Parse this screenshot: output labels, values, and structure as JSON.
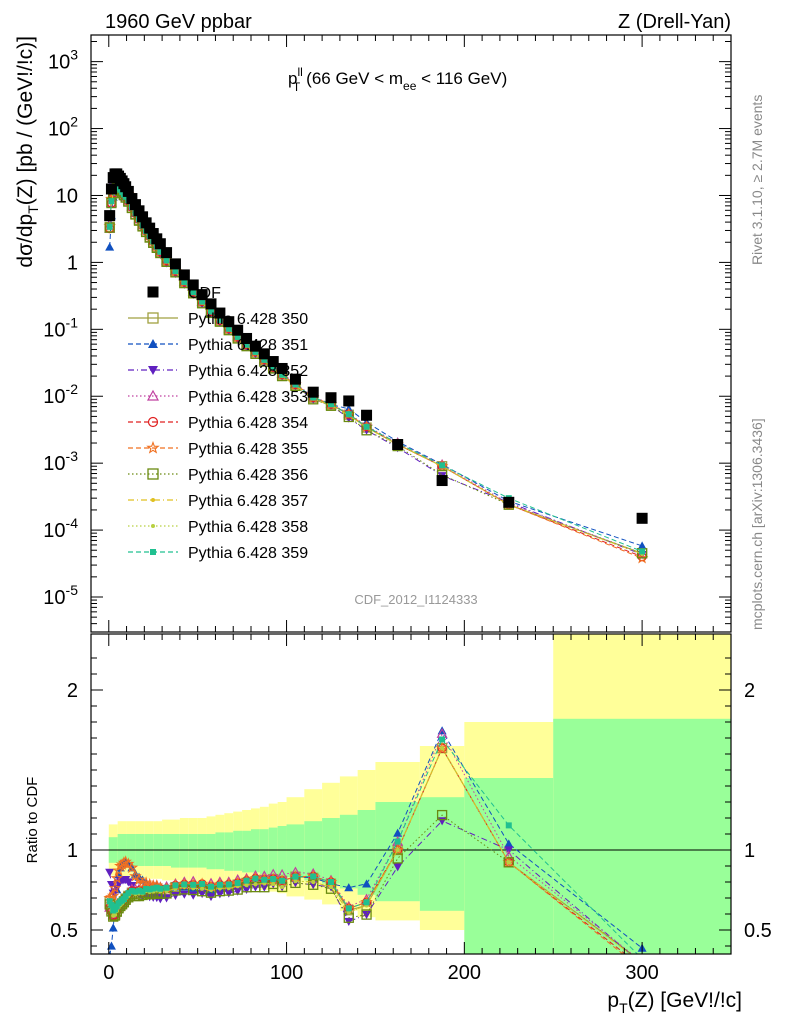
{
  "header": {
    "left": "1960 GeV ppbar",
    "right": "Z (Drell-Yan)"
  },
  "side_labels": {
    "rivet": "Rivet 3.1.10, ≥ 2.7M events",
    "mcplots": "mcplots.cern.ch [arXiv:1306.3436]"
  },
  "chart_data": [
    {
      "type": "scatter",
      "panel": "main",
      "title": "p_T^ll (66 GeV < m_ee < 116 GeV)",
      "annotation": "CDF_2012_I1124333",
      "xlabel": "p_T(Z) [GeV!/!c]",
      "ylabel": "dσ/dp_T(Z) [pb / (GeV!/!c)]",
      "xlim": [
        -10,
        350
      ],
      "ylim": [
        3e-06,
        2500
      ],
      "yscale": "log",
      "yticks": [
        "10^-5",
        "10^-4",
        "10^-3",
        "10^-2",
        "10^-1",
        "1",
        "10",
        "10^2",
        "10^3"
      ],
      "legend_position": "center-left",
      "x": [
        0.5,
        1.5,
        2.5,
        3.5,
        4.5,
        5.5,
        6.5,
        7.5,
        8.5,
        9.5,
        11,
        13,
        15,
        17,
        19,
        21,
        23,
        25,
        27,
        29,
        32.5,
        37.5,
        42.5,
        47.5,
        52.5,
        57.5,
        62.5,
        67.5,
        72.5,
        77.5,
        82.5,
        87.5,
        92.5,
        97.5,
        105,
        115,
        125,
        135,
        145,
        162.5,
        187.5,
        225,
        300
      ],
      "series": [
        {
          "name": "CDF",
          "color": "#000000",
          "marker": "square-filled",
          "line": "none",
          "values": [
            5.0,
            12.5,
            18.5,
            21.0,
            21.0,
            19.5,
            18.0,
            16.5,
            15.0,
            13.5,
            11.5,
            9.0,
            7.3,
            5.9,
            4.8,
            3.9,
            3.25,
            2.7,
            2.25,
            1.9,
            1.4,
            0.95,
            0.65,
            0.46,
            0.33,
            0.24,
            0.175,
            0.13,
            0.097,
            0.073,
            0.056,
            0.043,
            0.033,
            0.026,
            0.018,
            0.0115,
            0.0095,
            0.0085,
            0.0052,
            0.0019,
            0.00055,
            0.00026,
            0.00015
          ]
        },
        {
          "name": "Pythia 6.428 350",
          "color": "#a0a040",
          "marker": "square-open",
          "line": "solid",
          "values": [
            3.4,
            8.0,
            11.0,
            12.5,
            13.0,
            12.5,
            11.8,
            11.0,
            10.2,
            9.4,
            8.2,
            6.6,
            5.3,
            4.3,
            3.5,
            2.9,
            2.4,
            2.0,
            1.7,
            1.42,
            1.05,
            0.73,
            0.5,
            0.35,
            0.25,
            0.18,
            0.134,
            0.1,
            0.076,
            0.058,
            0.045,
            0.035,
            0.027,
            0.021,
            0.015,
            0.0095,
            0.0075,
            0.0053,
            0.0034,
            0.0019,
            0.0009,
            0.00024,
            4.5e-05
          ]
        },
        {
          "name": "Pythia 6.428 351",
          "color": "#1050c0",
          "marker": "triangle-up-filled",
          "line": "dashed",
          "values": [
            1.7,
            5.0,
            9.5,
            13.5,
            15.8,
            16.5,
            16.0,
            15.0,
            13.8,
            12.5,
            10.5,
            8.0,
            6.2,
            4.9,
            3.9,
            3.1,
            2.55,
            2.1,
            1.75,
            1.45,
            1.06,
            0.73,
            0.5,
            0.35,
            0.25,
            0.18,
            0.134,
            0.1,
            0.076,
            0.058,
            0.045,
            0.035,
            0.027,
            0.021,
            0.015,
            0.0095,
            0.0075,
            0.0065,
            0.0041,
            0.0021,
            0.00096,
            0.00027,
            5.8e-05
          ]
        },
        {
          "name": "Pythia 6.428 352",
          "color": "#6020c0",
          "marker": "triangle-down-filled",
          "line": "dashdot",
          "values": [
            4.3,
            9.8,
            13.5,
            15.5,
            16.0,
            15.5,
            14.5,
            13.4,
            12.2,
            11.0,
            9.2,
            7.0,
            5.4,
            4.3,
            3.4,
            2.8,
            2.3,
            1.9,
            1.58,
            1.32,
            0.98,
            0.68,
            0.47,
            0.33,
            0.24,
            0.17,
            0.127,
            0.095,
            0.072,
            0.055,
            0.043,
            0.033,
            0.026,
            0.02,
            0.0143,
            0.009,
            0.0073,
            0.0047,
            0.0031,
            0.0017,
            0.00065,
            0.00026,
            4.3e-05
          ]
        },
        {
          "name": "Pythia 6.428 353",
          "color": "#c040a0",
          "marker": "triangle-up-open",
          "line": "dotted",
          "values": [
            3.2,
            7.8,
            11.0,
            12.6,
            13.2,
            12.7,
            12.0,
            11.2,
            10.4,
            9.6,
            8.4,
            6.8,
            5.5,
            4.45,
            3.6,
            3.0,
            2.5,
            2.1,
            1.75,
            1.46,
            1.08,
            0.75,
            0.52,
            0.37,
            0.26,
            0.19,
            0.14,
            0.104,
            0.079,
            0.06,
            0.047,
            0.036,
            0.028,
            0.022,
            0.0155,
            0.0098,
            0.0077,
            0.0055,
            0.0036,
            0.002,
            0.00095,
            0.00025,
            4.5e-05
          ]
        },
        {
          "name": "Pythia 6.428 354",
          "color": "#e02020",
          "marker": "circle-open",
          "line": "dashed",
          "values": [
            3.2,
            7.7,
            10.9,
            12.5,
            13.1,
            12.6,
            11.9,
            11.1,
            10.3,
            9.5,
            8.3,
            6.7,
            5.4,
            4.4,
            3.55,
            2.95,
            2.45,
            2.05,
            1.72,
            1.44,
            1.06,
            0.74,
            0.51,
            0.36,
            0.26,
            0.185,
            0.137,
            0.102,
            0.077,
            0.059,
            0.046,
            0.035,
            0.027,
            0.021,
            0.015,
            0.0096,
            0.0076,
            0.0054,
            0.0035,
            0.0019,
            0.0009,
            0.00024,
            4e-05
          ]
        },
        {
          "name": "Pythia 6.428 355",
          "color": "#f07020",
          "marker": "star-open",
          "line": "dashed",
          "values": [
            3.5,
            8.8,
            13.2,
            16.0,
            17.3,
            17.0,
            16.2,
            15.0,
            13.8,
            12.5,
            10.5,
            8.0,
            6.1,
            4.8,
            3.8,
            3.1,
            2.55,
            2.1,
            1.75,
            1.45,
            1.06,
            0.74,
            0.51,
            0.36,
            0.26,
            0.185,
            0.137,
            0.102,
            0.077,
            0.059,
            0.046,
            0.035,
            0.027,
            0.021,
            0.015,
            0.0096,
            0.0076,
            0.0054,
            0.0035,
            0.0019,
            0.0009,
            0.00024,
            3.8e-05
          ]
        },
        {
          "name": "Pythia 6.428 356",
          "color": "#6a8a10",
          "marker": "square-open",
          "line": "dotted",
          "values": [
            3.3,
            7.7,
            10.8,
            12.4,
            12.9,
            12.4,
            11.7,
            10.9,
            10.1,
            9.3,
            8.1,
            6.5,
            5.2,
            4.2,
            3.45,
            2.85,
            2.35,
            1.96,
            1.65,
            1.38,
            1.02,
            0.71,
            0.49,
            0.345,
            0.245,
            0.176,
            0.13,
            0.097,
            0.073,
            0.056,
            0.043,
            0.033,
            0.026,
            0.02,
            0.0143,
            0.009,
            0.0072,
            0.0049,
            0.0031,
            0.0018,
            0.00067,
            0.00024,
            4.5e-05
          ]
        },
        {
          "name": "Pythia 6.428 357",
          "color": "#e0c020",
          "marker": "dot",
          "line": "dashdot",
          "values": [
            3.3,
            7.8,
            10.9,
            12.5,
            13.0,
            12.5,
            11.8,
            11.0,
            10.2,
            9.4,
            8.2,
            6.6,
            5.3,
            4.3,
            3.5,
            2.9,
            2.4,
            2.0,
            1.68,
            1.41,
            1.04,
            0.72,
            0.5,
            0.35,
            0.25,
            0.18,
            0.133,
            0.099,
            0.075,
            0.057,
            0.044,
            0.034,
            0.026,
            0.02,
            0.0145,
            0.0092,
            0.0073,
            0.0052,
            0.0034,
            0.0019,
            0.0009,
            0.00024,
            4.4e-05
          ]
        },
        {
          "name": "Pythia 6.428 358",
          "color": "#b8d040",
          "marker": "dot",
          "line": "dotted",
          "values": [
            3.3,
            7.8,
            10.9,
            12.5,
            13.0,
            12.5,
            11.8,
            11.0,
            10.2,
            9.4,
            8.2,
            6.6,
            5.3,
            4.3,
            3.5,
            2.9,
            2.4,
            2.0,
            1.68,
            1.41,
            1.04,
            0.72,
            0.5,
            0.35,
            0.25,
            0.18,
            0.133,
            0.099,
            0.075,
            0.057,
            0.044,
            0.034,
            0.026,
            0.02,
            0.0145,
            0.0092,
            0.0073,
            0.0052,
            0.0034,
            0.0019,
            0.0009,
            0.00024,
            4.4e-05
          ]
        },
        {
          "name": "Pythia 6.428 359",
          "color": "#20c090",
          "marker": "square-filled-small",
          "line": "dashed",
          "values": [
            3.4,
            8.2,
            11.5,
            13.2,
            13.6,
            13.0,
            12.2,
            11.3,
            10.4,
            9.6,
            8.4,
            6.7,
            5.4,
            4.4,
            3.55,
            2.95,
            2.45,
            2.05,
            1.72,
            1.44,
            1.07,
            0.74,
            0.51,
            0.36,
            0.26,
            0.185,
            0.137,
            0.102,
            0.077,
            0.059,
            0.046,
            0.035,
            0.027,
            0.021,
            0.015,
            0.0096,
            0.0076,
            0.0054,
            0.0035,
            0.002,
            0.00093,
            0.0003,
            4.8e-05
          ]
        }
      ]
    },
    {
      "type": "scatter",
      "panel": "ratio",
      "ylabel": "Ratio to CDF",
      "xlabel": "p_T(Z) [GeV!/!c]",
      "xlim": [
        -10,
        350
      ],
      "ylim": [
        0.35,
        2.35
      ],
      "xticks": [
        "0",
        "100",
        "200",
        "300"
      ],
      "yticks": [
        "0.5",
        "1",
        "2"
      ],
      "reference_line": 1,
      "uncertainty_bands": {
        "x_edges": [
          0,
          5,
          10,
          15,
          20,
          25,
          30,
          35,
          40,
          45,
          50,
          55,
          60,
          65,
          70,
          75,
          80,
          85,
          90,
          95,
          100,
          110,
          120,
          130,
          140,
          150,
          175,
          200,
          250,
          350
        ],
        "inner_color": "#99ff99",
        "outer_color": "#ffff99",
        "inner_upper": [
          1.08,
          1.1,
          1.1,
          1.1,
          1.1,
          1.1,
          1.1,
          1.1,
          1.1,
          1.1,
          1.1,
          1.1,
          1.11,
          1.11,
          1.12,
          1.12,
          1.13,
          1.13,
          1.14,
          1.15,
          1.16,
          1.18,
          1.2,
          1.22,
          1.25,
          1.3,
          1.33,
          1.45,
          1.82
        ],
        "inner_lower": [
          0.92,
          0.9,
          0.9,
          0.9,
          0.9,
          0.9,
          0.9,
          0.89,
          0.89,
          0.89,
          0.89,
          0.88,
          0.88,
          0.87,
          0.87,
          0.86,
          0.86,
          0.85,
          0.85,
          0.84,
          0.83,
          0.81,
          0.79,
          0.76,
          0.72,
          0.68,
          0.62,
          0.35,
          0.35
        ],
        "outer_upper": [
          1.16,
          1.18,
          1.18,
          1.18,
          1.18,
          1.18,
          1.19,
          1.19,
          1.2,
          1.2,
          1.2,
          1.21,
          1.22,
          1.23,
          1.24,
          1.25,
          1.26,
          1.27,
          1.29,
          1.3,
          1.33,
          1.38,
          1.42,
          1.46,
          1.5,
          1.55,
          1.65,
          1.8,
          2.35
        ],
        "outer_lower": [
          0.84,
          0.82,
          0.82,
          0.82,
          0.82,
          0.82,
          0.81,
          0.81,
          0.8,
          0.8,
          0.8,
          0.79,
          0.78,
          0.78,
          0.77,
          0.76,
          0.76,
          0.75,
          0.74,
          0.73,
          0.71,
          0.69,
          0.66,
          0.62,
          0.58,
          0.56,
          0.5,
          0.35,
          0.35
        ]
      },
      "note": "ratio = series / CDF for each x"
    }
  ]
}
